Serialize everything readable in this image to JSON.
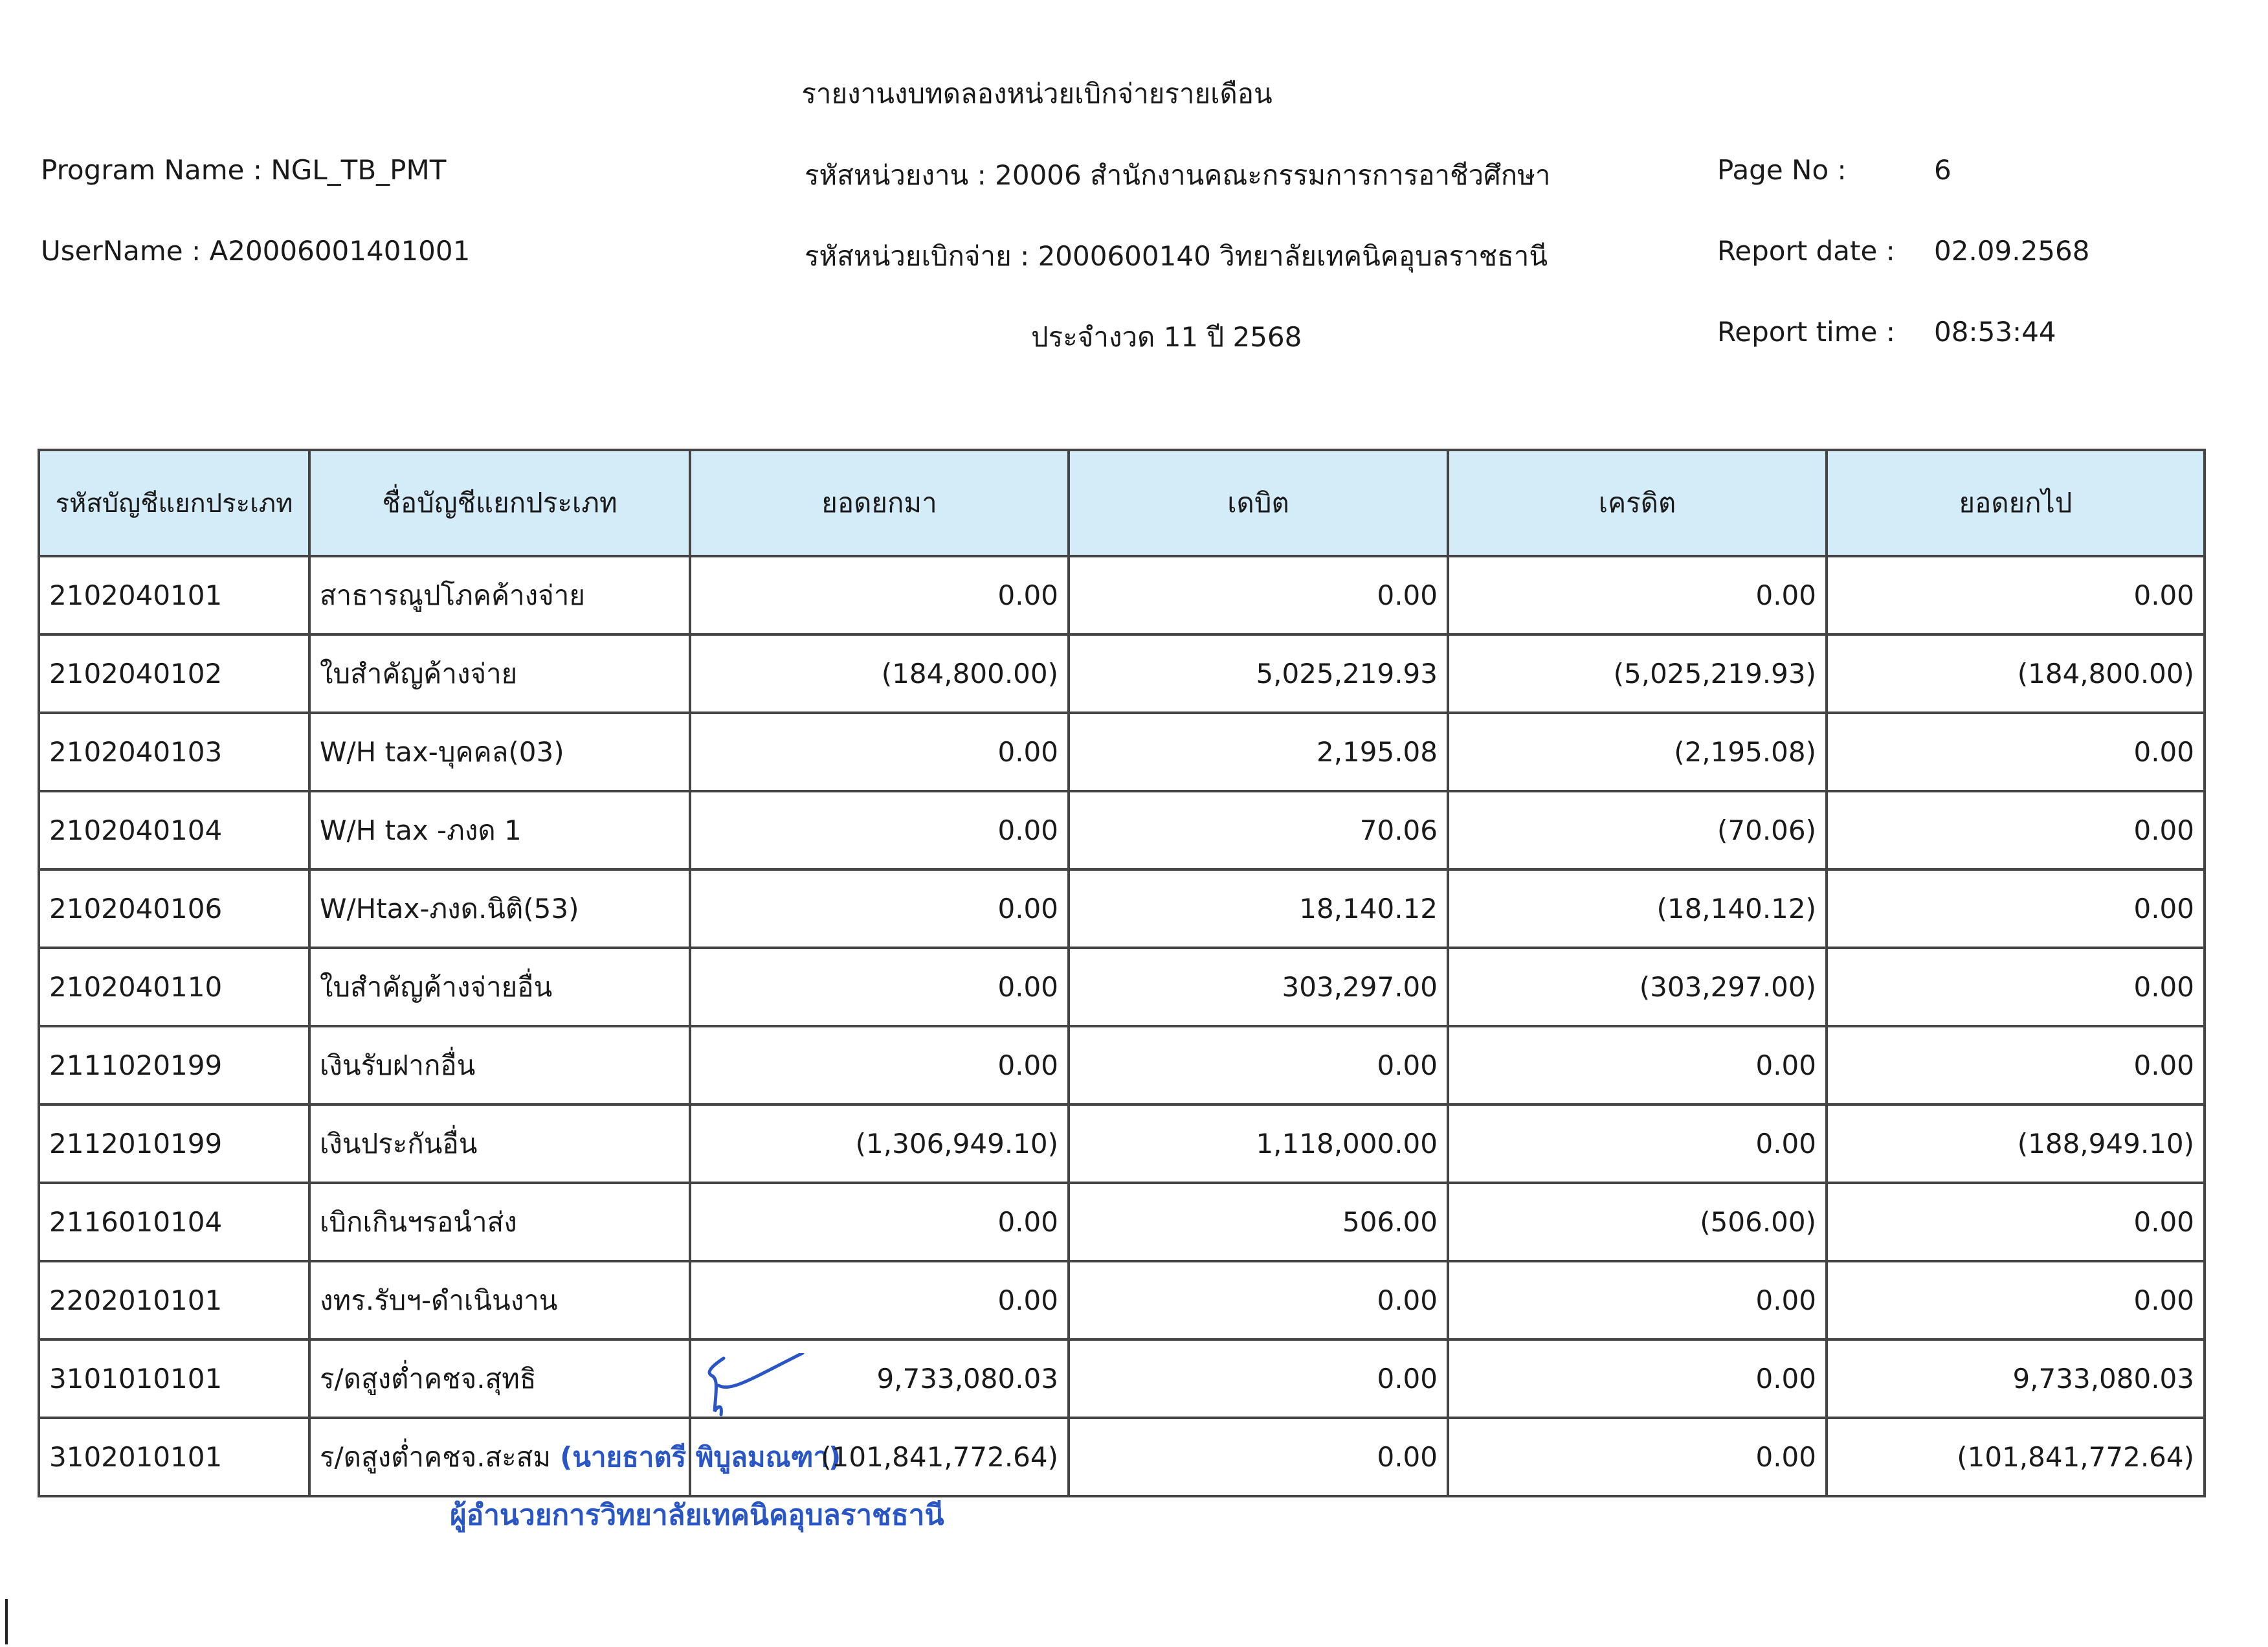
{
  "header": {
    "title": "รายงานงบทดลองหน่วยเบิกจ่ายรายเดือน",
    "program_name": "Program Name : NGL_TB_PMT",
    "username": "UserName : A20006001401001",
    "agency": "รหัสหน่วยงาน : 20006 สำนักงานคณะกรรมการการอาชีวศึกษา",
    "disbursing_unit": "รหัสหน่วยเบิกจ่าย : 2000600140 วิทยาลัยเทคนิคอุบลราชธานี",
    "period": "ประจำงวด 11 ปี 2568",
    "page_no_label": "Page No :",
    "page_no": "6",
    "report_date_label": "Report date :",
    "report_date": "02.09.2568",
    "report_time_label": "Report time :",
    "report_time": "08:53:44"
  },
  "table": {
    "columns": [
      "รหัสบัญชีแยกประเภท",
      "ชื่อบัญชีแยกประเภท",
      "ยอดยกมา",
      "เดบิต",
      "เครดิต",
      "ยอดยกไป"
    ],
    "rows": [
      [
        "2102040101",
        "สาธารณูปโภคค้างจ่าย",
        "0.00",
        "0.00",
        "0.00",
        "0.00"
      ],
      [
        "2102040102",
        "ใบสำคัญค้างจ่าย",
        "(184,800.00)",
        "5,025,219.93",
        "(5,025,219.93)",
        "(184,800.00)"
      ],
      [
        "2102040103",
        "W/H tax-บุคคล(03)",
        "0.00",
        "2,195.08",
        "(2,195.08)",
        "0.00"
      ],
      [
        "2102040104",
        "W/H tax -ภงด 1",
        "0.00",
        "70.06",
        "(70.06)",
        "0.00"
      ],
      [
        "2102040106",
        "W/Htax-ภงด.นิติ(53)",
        "0.00",
        "18,140.12",
        "(18,140.12)",
        "0.00"
      ],
      [
        "2102040110",
        "ใบสำคัญค้างจ่ายอื่น",
        "0.00",
        "303,297.00",
        "(303,297.00)",
        "0.00"
      ],
      [
        "2111020199",
        "เงินรับฝากอื่น",
        "0.00",
        "0.00",
        "0.00",
        "0.00"
      ],
      [
        "2112010199",
        "เงินประกันอื่น",
        "(1,306,949.10)",
        "1,118,000.00",
        "0.00",
        "(188,949.10)"
      ],
      [
        "2116010104",
        "เบิกเกินฯรอนำส่ง",
        "0.00",
        "506.00",
        "(506.00)",
        "0.00"
      ],
      [
        "2202010101",
        "งทร.รับฯ-ดำเนินงาน",
        "0.00",
        "0.00",
        "0.00",
        "0.00"
      ],
      [
        "3101010101",
        "ร/ดสูงต่ำคชจ.สุทธิ",
        "9,733,080.03",
        "0.00",
        "0.00",
        "9,733,080.03"
      ],
      [
        "3102010101",
        "ร/ดสูงต่ำคชจ.สะสม",
        "(101,841,772.64)",
        "0.00",
        "0.00",
        "(101,841,772.64)"
      ]
    ]
  },
  "stamp": {
    "name": "(นายธาตรี  พิบูลมณฑา)",
    "position": "ผู้อำนวยการวิทยาลัยเทคนิคอุบลราชธานี",
    "color": "#2a55c4"
  },
  "colors": {
    "header_bg": "#d4ebf8"
  }
}
